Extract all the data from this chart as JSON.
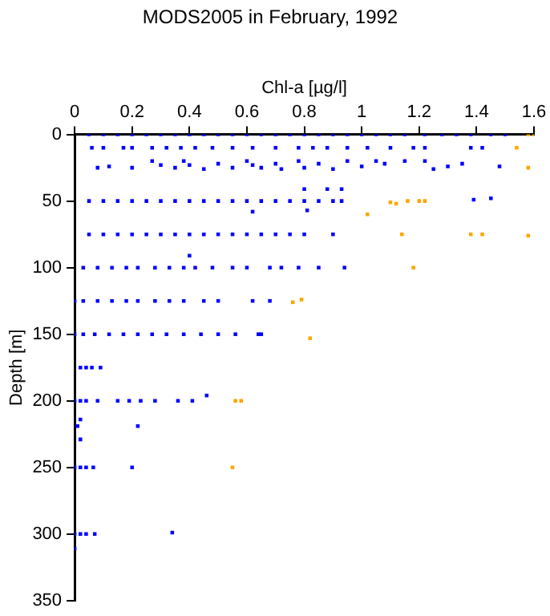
{
  "chart_data": {
    "type": "scatter",
    "title": "MODS2005 in February, 1992",
    "xlabel": "Chl-a [µg/l]",
    "ylabel": "Depth [m]",
    "marker": "square",
    "xlim": [
      0,
      1.6
    ],
    "xticks": [
      0,
      0.2,
      0.4,
      0.6,
      0.8,
      1,
      1.2,
      1.4,
      1.6
    ],
    "ylim": [
      350,
      0
    ],
    "yticks": [
      0,
      50,
      100,
      150,
      200,
      250,
      300,
      350
    ],
    "series": [
      {
        "color": "#0000ff",
        "x": [
          0.05,
          0.1,
          0.15,
          0.2,
          0.25,
          0.3,
          0.35,
          0.4,
          0.45,
          0.5,
          0.55,
          0.6,
          0.65,
          0.7,
          0.75,
          0.8,
          0.85,
          0.9,
          0.95,
          1.0,
          1.05,
          1.1,
          1.15,
          1.22,
          1.28,
          1.33,
          1.38,
          1.45,
          1.5,
          0.06,
          0.1,
          0.17,
          0.2,
          0.27,
          0.32,
          0.37,
          0.42,
          0.48,
          0.55,
          0.62,
          0.7,
          0.78,
          0.83,
          0.88,
          0.95,
          1.02,
          1.1,
          1.18,
          1.22,
          1.38,
          1.42,
          0.08,
          0.12,
          0.2,
          0.27,
          0.3,
          0.35,
          0.38,
          0.4,
          0.45,
          0.5,
          0.55,
          0.6,
          0.65,
          0.7,
          0.78,
          0.8,
          0.85,
          0.9,
          0.95,
          1.0,
          1.05,
          1.08,
          1.15,
          1.22,
          1.25,
          1.3,
          1.35,
          1.48,
          0.72,
          0.62,
          0.8,
          0.88,
          0.93,
          0.05,
          0.1,
          0.15,
          0.2,
          0.25,
          0.3,
          0.35,
          0.4,
          0.45,
          0.5,
          0.55,
          0.6,
          0.65,
          0.7,
          0.75,
          0.8,
          0.85,
          0.9,
          0.93,
          1.39,
          1.45,
          0.62,
          0.81,
          0.05,
          0.1,
          0.15,
          0.2,
          0.25,
          0.3,
          0.35,
          0.4,
          0.45,
          0.5,
          0.55,
          0.6,
          0.65,
          0.7,
          0.75,
          0.8,
          0.9,
          0.4,
          0.03,
          0.08,
          0.13,
          0.18,
          0.22,
          0.28,
          0.33,
          0.38,
          0.42,
          0.48,
          0.55,
          0.6,
          0.68,
          0.72,
          0.78,
          0.85,
          0.94,
          0.0,
          0.03,
          0.08,
          0.13,
          0.18,
          0.22,
          0.28,
          0.33,
          0.38,
          0.45,
          0.5,
          0.62,
          0.68,
          0.0,
          0.03,
          0.07,
          0.12,
          0.17,
          0.22,
          0.27,
          0.32,
          0.38,
          0.44,
          0.5,
          0.56,
          0.64,
          0.65,
          0.02,
          0.04,
          0.06,
          0.09,
          0.0,
          0.02,
          0.04,
          0.08,
          0.15,
          0.19,
          0.23,
          0.28,
          0.36,
          0.41,
          0.46,
          0.02,
          0.01,
          0.22,
          0.02,
          0.0,
          0.02,
          0.04,
          0.065,
          0.2,
          0.0,
          0.02,
          0.04,
          0.07,
          0.34,
          0.0
        ],
        "values": [
          0,
          0,
          0,
          0,
          0,
          0,
          0,
          0,
          0,
          0,
          0,
          0,
          0,
          0,
          0,
          0,
          0,
          0,
          0,
          0,
          0,
          0,
          0,
          0,
          0,
          0,
          0,
          0,
          0,
          10,
          10,
          10,
          10,
          10,
          10,
          10,
          10,
          10,
          10,
          10,
          10,
          10,
          10,
          10,
          10,
          10,
          10,
          10,
          10,
          10,
          10,
          25,
          24,
          25,
          20,
          23,
          25,
          20,
          23,
          26,
          22,
          25,
          20,
          25,
          22,
          20,
          25,
          22,
          26,
          20,
          24,
          20,
          22,
          20,
          20,
          26,
          24,
          22,
          24,
          26,
          23,
          41,
          41,
          41,
          50,
          50,
          50,
          50,
          50,
          50,
          50,
          50,
          50,
          50,
          50,
          50,
          50,
          50,
          50,
          50,
          50,
          50,
          50,
          49,
          48,
          58,
          57,
          75,
          75,
          75,
          75,
          75,
          75,
          75,
          75,
          75,
          75,
          75,
          75,
          75,
          75,
          75,
          75,
          75,
          91,
          100,
          100,
          100,
          100,
          100,
          100,
          100,
          100,
          100,
          100,
          100,
          100,
          100,
          100,
          100,
          100,
          100,
          125,
          125,
          125,
          125,
          125,
          125,
          125,
          125,
          125,
          125,
          125,
          125,
          125,
          150,
          150,
          150,
          150,
          150,
          150,
          150,
          150,
          150,
          150,
          150,
          150,
          150,
          150,
          175,
          175,
          175,
          175,
          200,
          200,
          200,
          200,
          200,
          200,
          200,
          200,
          200,
          200,
          196,
          214,
          219,
          219,
          229,
          250,
          250,
          250,
          250,
          250,
          300,
          300,
          300,
          300,
          299,
          311
        ]
      },
      {
        "color": "#ffa500",
        "x": [
          1.58,
          1.6,
          1.54,
          1.58,
          1.1,
          1.12,
          1.16,
          1.2,
          1.22,
          1.02,
          1.14,
          1.38,
          1.42,
          1.58,
          1.18,
          0.76,
          0.79,
          0.82,
          0.56,
          0.58,
          0.55
        ],
        "values": [
          0,
          0,
          10,
          25,
          51,
          52,
          50,
          50,
          50,
          60,
          75,
          75,
          75,
          76,
          100,
          126,
          124,
          153,
          200,
          200,
          250
        ]
      }
    ]
  }
}
